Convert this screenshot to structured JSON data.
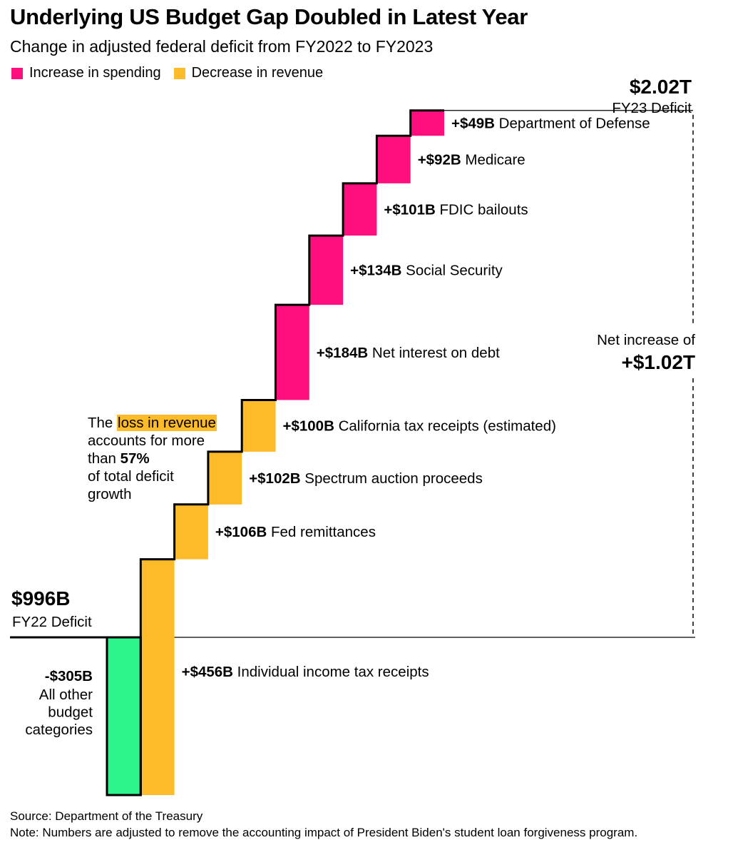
{
  "header": {
    "title": "Underlying US Budget Gap Doubled in Latest Year",
    "subtitle": "Change in adjusted federal deficit from FY2022 to FY2023"
  },
  "legend": {
    "items": [
      {
        "label": "Increase in spending",
        "color": "#ff0e7d"
      },
      {
        "label": "Decrease in revenue",
        "color": "#fdba29"
      }
    ]
  },
  "colors": {
    "spending": "#ff0e7d",
    "revenue": "#fdba29",
    "other": "#2df58c",
    "outline": "#000000"
  },
  "annotations": {
    "start_value": "$996B",
    "start_label": "FY22 Deficit",
    "end_value": "$2.02T",
    "end_label": "FY23 Deficit",
    "net_label": "Net increase of",
    "net_value": "+$1.02T",
    "other_value": "-$305B",
    "other_label_lines": [
      "All other",
      "budget",
      "categories"
    ],
    "note_pre": "The ",
    "note_highlight": "loss in revenue",
    "note_line2": "accounts for more",
    "note_line3_pre": "than ",
    "note_line3_bold": "57%",
    "note_line4": "of total deficit",
    "note_line5": "growth"
  },
  "chart_data": {
    "type": "waterfall",
    "title": "Underlying US Budget Gap Doubled in Latest Year",
    "subtitle": "Change in adjusted federal deficit from FY2022 to FY2023",
    "unit": "billions of US dollars",
    "start": {
      "label": "FY22 Deficit",
      "value": 996
    },
    "end": {
      "label": "FY23 Deficit",
      "value": 2020
    },
    "net_change": 1020,
    "steps": [
      {
        "label": "All other budget categories",
        "value": -305,
        "value_label": "-$305B",
        "group": "other"
      },
      {
        "label": "Individual income tax receipts",
        "value": 456,
        "value_label": "+$456B",
        "group": "revenue"
      },
      {
        "label": "Fed remittances",
        "value": 106,
        "value_label": "+$106B",
        "group": "revenue"
      },
      {
        "label": "Spectrum auction proceeds",
        "value": 102,
        "value_label": "+$102B",
        "group": "revenue"
      },
      {
        "label": "California tax receipts (estimated)",
        "value": 100,
        "value_label": "+$100B",
        "group": "revenue"
      },
      {
        "label": "Net interest on debt",
        "value": 184,
        "value_label": "+$184B",
        "group": "spending"
      },
      {
        "label": "Social Security",
        "value": 134,
        "value_label": "+$134B",
        "group": "spending"
      },
      {
        "label": "FDIC bailouts",
        "value": 101,
        "value_label": "+$101B",
        "group": "spending"
      },
      {
        "label": "Medicare",
        "value": 92,
        "value_label": "+$92B",
        "group": "spending"
      },
      {
        "label": "Department of Defense",
        "value": 49,
        "value_label": "+$49B",
        "group": "spending"
      }
    ],
    "legend": [
      "Increase in spending",
      "Decrease in revenue"
    ],
    "legend_position": "top-left",
    "grid": false
  },
  "footer": {
    "source": "Source: Department of the Treasury",
    "note": "Note: Numbers are adjusted to remove the accounting impact of President Biden's student loan forgiveness program."
  }
}
